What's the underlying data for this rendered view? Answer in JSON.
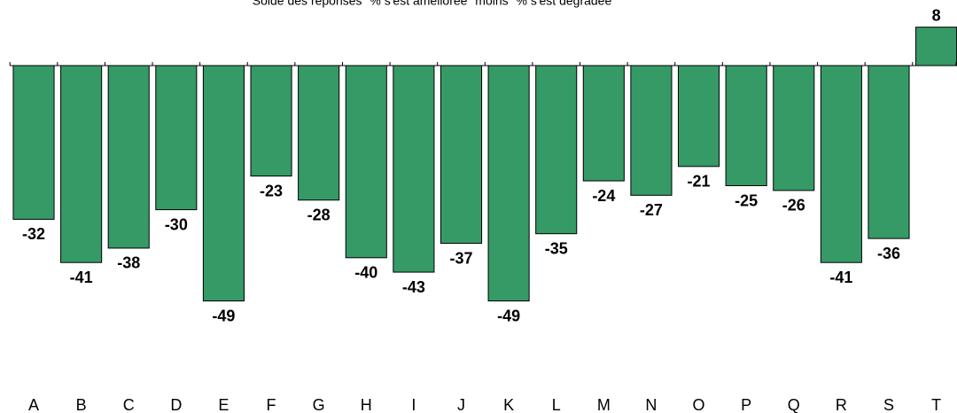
{
  "chart_data": {
    "type": "bar",
    "title": "Solde des réponses \"% s'est améliorée\" moins \"% s'est dégradée\"",
    "categories": [
      "A",
      "B",
      "C",
      "D",
      "E",
      "F",
      "G",
      "H",
      "I",
      "J",
      "K",
      "L",
      "M",
      "N",
      "O",
      "P",
      "Q",
      "R",
      "S",
      "T"
    ],
    "values": [
      -32,
      -41,
      -38,
      -30,
      -49,
      -23,
      -28,
      -40,
      -43,
      -37,
      -49,
      -35,
      -24,
      -27,
      -21,
      -25,
      -26,
      -41,
      -36,
      8
    ],
    "color": "#359a66",
    "ylim": [
      -60,
      10
    ]
  }
}
